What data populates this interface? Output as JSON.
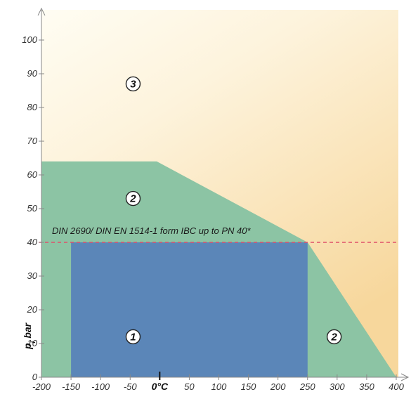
{
  "chart_data": {
    "type": "area",
    "title": "",
    "xlabel": "",
    "ylabel": "p_i bar",
    "ylabel_main": "p",
    "ylabel_sub": "i",
    "ylabel_unit": "bar",
    "x_ticks": [
      -200,
      -150,
      -100,
      -50,
      0,
      50,
      100,
      150,
      200,
      250,
      300,
      350,
      400
    ],
    "x_tick_labels": [
      "-200",
      "-150",
      "-100",
      "-50",
      "0°C",
      "50",
      "100",
      "150",
      "200",
      "250",
      "300",
      "350",
      "400"
    ],
    "y_ticks": [
      0,
      10,
      20,
      30,
      40,
      50,
      60,
      70,
      80,
      90,
      100
    ],
    "y_tick_labels": [
      "0",
      "10",
      "20",
      "30",
      "40",
      "50",
      "60",
      "70",
      "80",
      "90",
      "100"
    ],
    "xlim": [
      -200,
      400
    ],
    "ylim": [
      0,
      100
    ],
    "grid": false,
    "background_zone": {
      "label": "3",
      "gradient": "cream to light orange, darker toward the lower right",
      "label_at": [
        -45,
        87
      ]
    },
    "regions": [
      {
        "label": "2",
        "color": "#8cc4a4",
        "polygon": [
          [
            -200,
            0
          ],
          [
            -200,
            64
          ],
          [
            -200,
            64
          ],
          [
            -5,
            64
          ],
          [
            250,
            40
          ],
          [
            400,
            0
          ]
        ],
        "label_positions": [
          [
            -45,
            53
          ],
          [
            295,
            12
          ]
        ]
      },
      {
        "label": "1",
        "color": "#5b86b8",
        "polygon": [
          [
            -150,
            0
          ],
          [
            -150,
            40
          ],
          [
            250,
            40
          ],
          [
            250,
            0
          ]
        ],
        "label_positions": [
          [
            -45,
            12
          ]
        ]
      }
    ],
    "reference_line": {
      "y": 40,
      "text": "DIN 2690/ DIN EN 1514-1 form IBC up to PN 40*",
      "color": "#e0506a",
      "style": "dashed"
    },
    "colors": {
      "zone_1": "#5b86b8",
      "zone_2": "#8cc4a4",
      "zone_3_top": "#fffdf3",
      "zone_3_bottom": "#f7d79c",
      "axis": "#888888",
      "reference_line": "#e0506a"
    }
  }
}
